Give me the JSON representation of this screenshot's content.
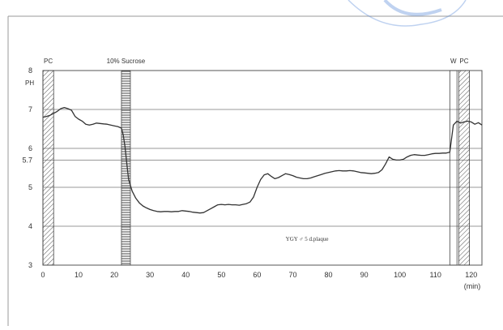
{
  "chart_data": {
    "type": "line",
    "xlabel": "(min)",
    "ylabel": "PH",
    "xlim": [
      0,
      123
    ],
    "ylim": [
      3,
      8
    ],
    "x_ticks": [
      0,
      10,
      20,
      30,
      40,
      50,
      60,
      70,
      80,
      90,
      100,
      110,
      120
    ],
    "y_ticks": [
      3,
      4,
      5,
      6,
      7,
      8
    ],
    "ref_line": {
      "label": "5.7",
      "value": 5.7
    },
    "grid": true,
    "annotation": "YGY ♂   5 d.plaque",
    "events": [
      {
        "label": "PC",
        "start": 0,
        "end": 3,
        "pattern": "diagonal-hatch"
      },
      {
        "label": "10% Sucrose",
        "start": 22,
        "end": 24.5,
        "pattern": "horizontal-hatch"
      },
      {
        "label": "W",
        "start": 114,
        "end": 116,
        "pattern": "none"
      },
      {
        "label": "PC",
        "start": 116.5,
        "end": 119.5,
        "pattern": "diagonal-hatch"
      }
    ],
    "series": [
      {
        "x": [
          0,
          1,
          2,
          3,
          4,
          5,
          6,
          7,
          8,
          9,
          10,
          11,
          12,
          13,
          14,
          15,
          16,
          17,
          18,
          19,
          20,
          21,
          22,
          22.5,
          23,
          23.5,
          24,
          25,
          26,
          27,
          28,
          29,
          30,
          31,
          32,
          33,
          34,
          35,
          36,
          37,
          38,
          39,
          40,
          41,
          42,
          43,
          44,
          45,
          46,
          47,
          48,
          49,
          50,
          51,
          52,
          53,
          54,
          55,
          56,
          57,
          58,
          59,
          60,
          61,
          62,
          63,
          64,
          65,
          66,
          67,
          68,
          69,
          70,
          71,
          72,
          73,
          74,
          75,
          76,
          77,
          78,
          79,
          80,
          81,
          82,
          83,
          84,
          85,
          86,
          87,
          88,
          89,
          90,
          91,
          92,
          93,
          94,
          95,
          96,
          97,
          98,
          99,
          100,
          101,
          102,
          103,
          104,
          105,
          106,
          107,
          108,
          109,
          110,
          111,
          112,
          113,
          114,
          115,
          116,
          117,
          118,
          119,
          120,
          121,
          122,
          123
        ],
        "values": [
          6.8,
          6.82,
          6.85,
          6.9,
          6.95,
          7.02,
          7.05,
          7.02,
          6.98,
          6.82,
          6.75,
          6.7,
          6.62,
          6.6,
          6.62,
          6.65,
          6.64,
          6.63,
          6.62,
          6.6,
          6.58,
          6.56,
          6.52,
          6.35,
          6.05,
          5.6,
          5.2,
          4.9,
          4.72,
          4.6,
          4.52,
          4.47,
          4.43,
          4.4,
          4.38,
          4.37,
          4.38,
          4.38,
          4.37,
          4.38,
          4.38,
          4.4,
          4.39,
          4.38,
          4.36,
          4.35,
          4.34,
          4.35,
          4.4,
          4.45,
          4.5,
          4.55,
          4.56,
          4.55,
          4.56,
          4.55,
          4.55,
          4.54,
          4.56,
          4.58,
          4.62,
          4.75,
          5.0,
          5.2,
          5.32,
          5.35,
          5.28,
          5.22,
          5.25,
          5.3,
          5.35,
          5.33,
          5.3,
          5.26,
          5.24,
          5.22,
          5.22,
          5.24,
          5.27,
          5.3,
          5.33,
          5.36,
          5.38,
          5.4,
          5.42,
          5.43,
          5.42,
          5.42,
          5.43,
          5.42,
          5.4,
          5.38,
          5.37,
          5.36,
          5.35,
          5.36,
          5.38,
          5.45,
          5.6,
          5.78,
          5.72,
          5.7,
          5.7,
          5.72,
          5.78,
          5.82,
          5.84,
          5.83,
          5.82,
          5.82,
          5.84,
          5.86,
          5.87,
          5.87,
          5.88,
          5.88,
          5.9,
          6.6,
          6.7,
          6.65,
          6.68,
          6.7,
          6.68,
          6.62,
          6.66,
          6.6
        ]
      }
    ]
  }
}
